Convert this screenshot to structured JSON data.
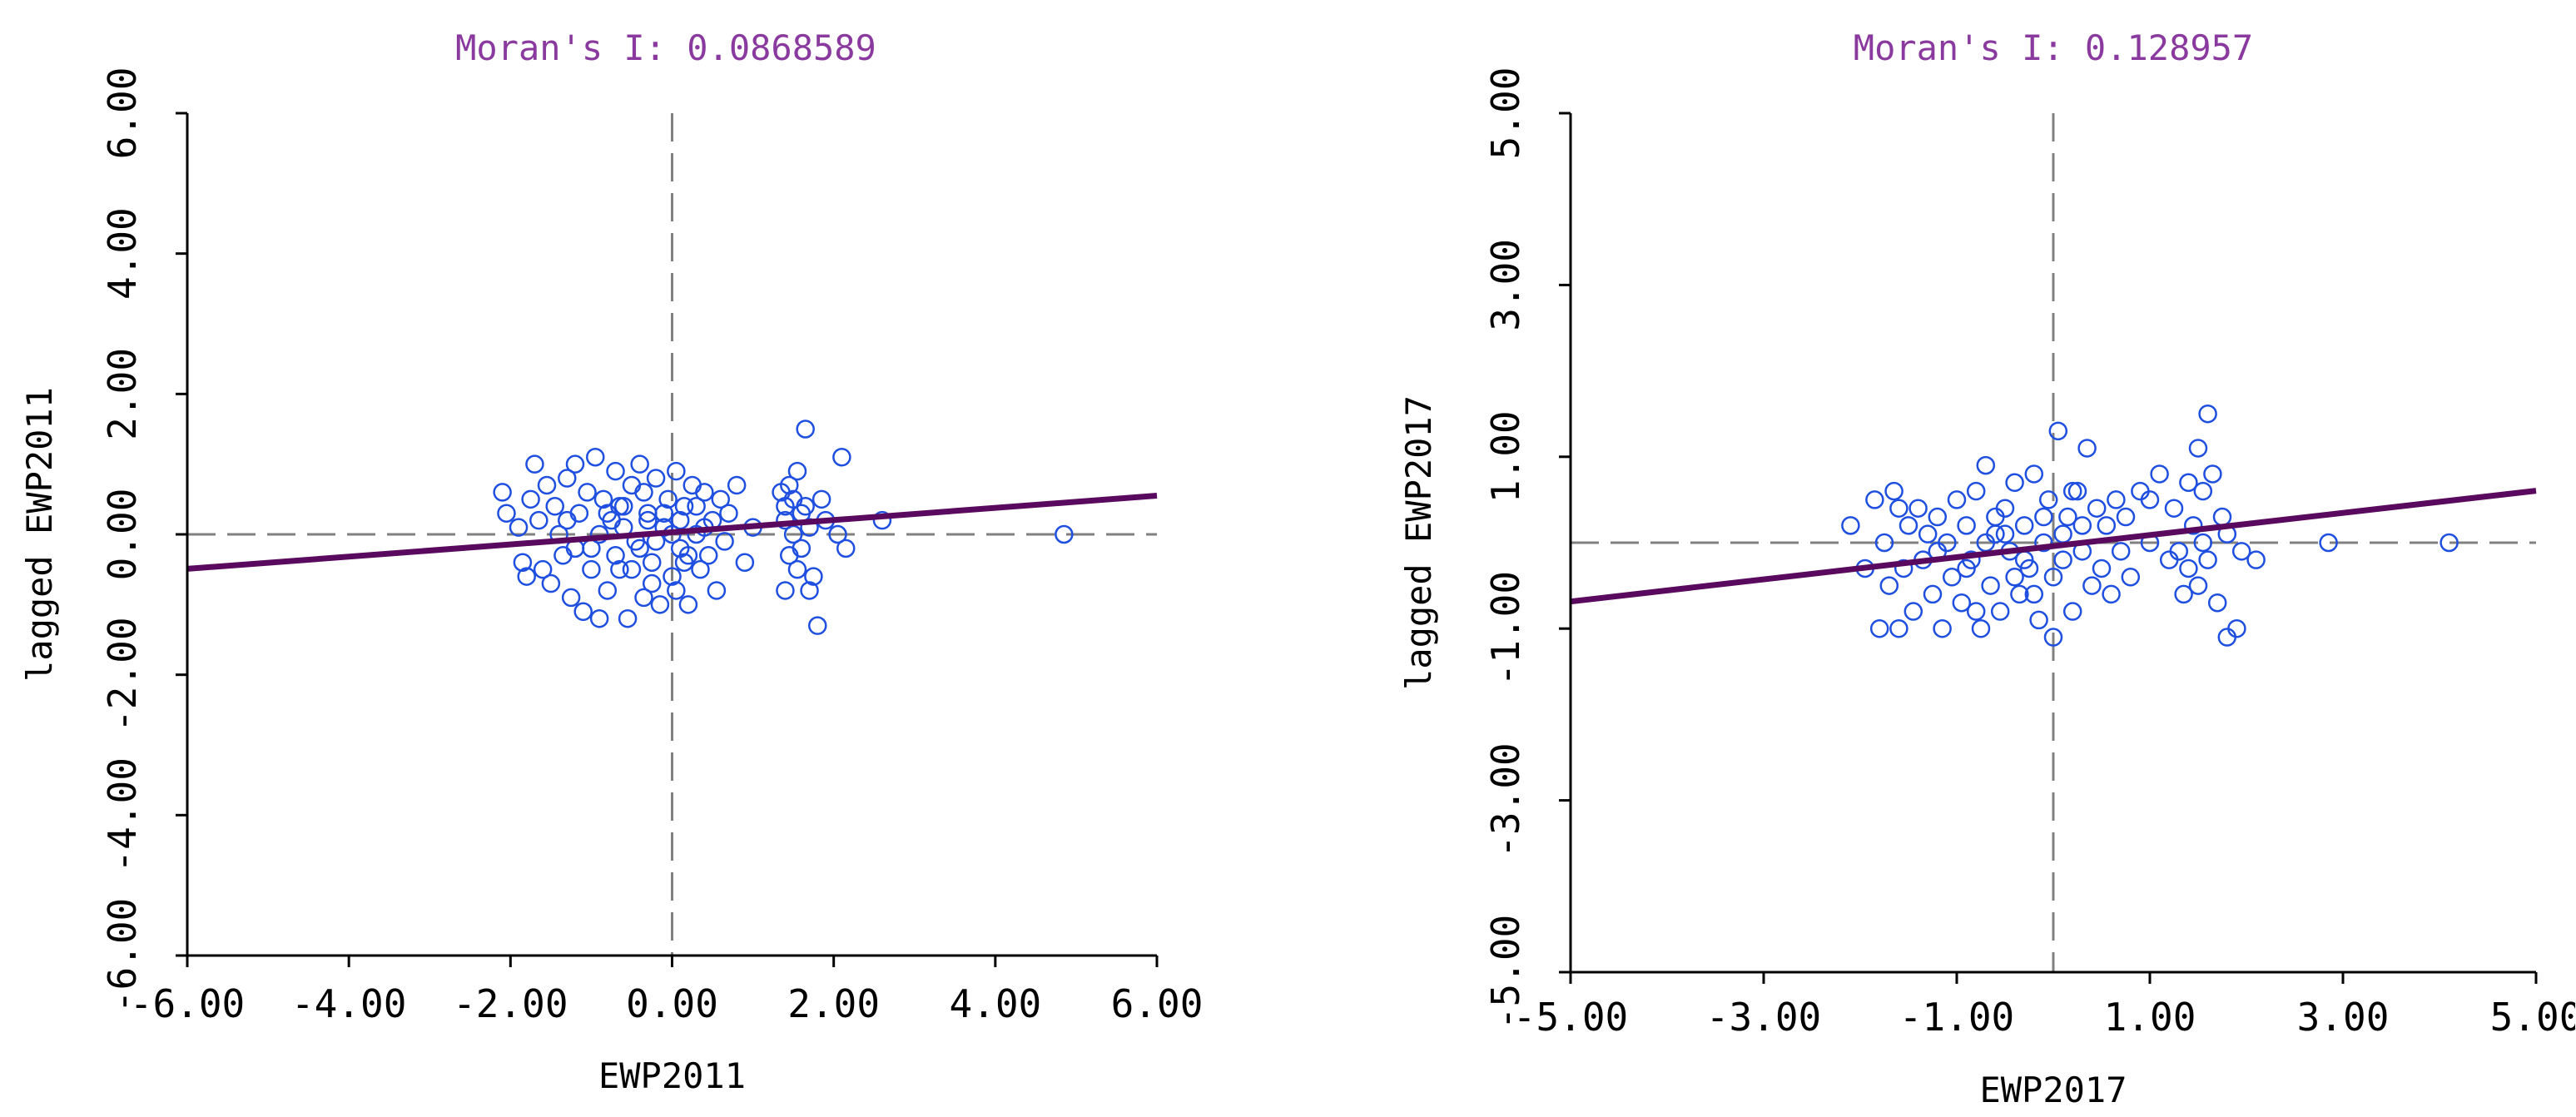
{
  "colors": {
    "point": "#1f4fe0",
    "regression_line": "#5a0a5e",
    "title": "#8a3a9e",
    "axis": "#000000",
    "reference_line": "#808080"
  },
  "chart_data": [
    {
      "type": "scatter",
      "title": "Moran's I: 0.0868589",
      "xlabel": "EWP2011",
      "ylabel": "lagged EWP2011",
      "xlim": [
        -6,
        6
      ],
      "ylim": [
        -6,
        6
      ],
      "xticks": [
        -6,
        -4,
        -2,
        0,
        2,
        4,
        6
      ],
      "yticks": [
        -6,
        -4,
        -2,
        0,
        2,
        4,
        6
      ],
      "xtick_labels": [
        "-6.00",
        "-4.00",
        "-2.00",
        "0.00",
        "2.00",
        "4.00",
        "6.00"
      ],
      "ytick_labels": [
        "-6.00",
        "-4.00",
        "-2.00",
        "0.00",
        "2.00",
        "4.00",
        "6.00"
      ],
      "reference_lines": {
        "x": 0,
        "y": 0
      },
      "regression": {
        "slope": 0.0868589,
        "intercept": 0.03
      },
      "points": [
        [
          -2.1,
          0.6
        ],
        [
          -2.05,
          0.3
        ],
        [
          -1.9,
          0.1
        ],
        [
          -1.85,
          -0.4
        ],
        [
          -1.8,
          -0.6
        ],
        [
          -1.75,
          0.5
        ],
        [
          -1.7,
          1.0
        ],
        [
          -1.65,
          0.2
        ],
        [
          -1.6,
          -0.5
        ],
        [
          -1.55,
          0.7
        ],
        [
          -1.5,
          -0.7
        ],
        [
          -1.45,
          0.4
        ],
        [
          -1.4,
          0.0
        ],
        [
          -1.35,
          -0.3
        ],
        [
          -1.3,
          0.8
        ],
        [
          -1.25,
          -0.9
        ],
        [
          -1.2,
          1.0
        ],
        [
          -1.15,
          0.3
        ],
        [
          -1.1,
          -1.1
        ],
        [
          -1.05,
          0.6
        ],
        [
          -1.0,
          -0.2
        ],
        [
          -0.95,
          1.1
        ],
        [
          -0.9,
          -1.2
        ],
        [
          -0.85,
          0.5
        ],
        [
          -0.8,
          -0.8
        ],
        [
          -0.75,
          0.2
        ],
        [
          -0.7,
          0.9
        ],
        [
          -0.65,
          -0.5
        ],
        [
          -0.6,
          0.4
        ],
        [
          -0.55,
          -1.2
        ],
        [
          -0.5,
          0.7
        ],
        [
          -0.45,
          -0.1
        ],
        [
          -0.4,
          1.0
        ],
        [
          -0.35,
          -0.9
        ],
        [
          -0.3,
          0.3
        ],
        [
          -0.25,
          -0.4
        ],
        [
          -0.2,
          0.8
        ],
        [
          -0.15,
          -1.0
        ],
        [
          -0.1,
          0.1
        ],
        [
          -0.05,
          0.5
        ],
        [
          0.0,
          -0.6
        ],
        [
          0.05,
          0.9
        ],
        [
          0.1,
          -0.2
        ],
        [
          0.15,
          0.4
        ],
        [
          0.2,
          -1.0
        ],
        [
          0.25,
          0.7
        ],
        [
          0.3,
          0.0
        ],
        [
          0.35,
          -0.5
        ],
        [
          0.4,
          0.6
        ],
        [
          0.45,
          -0.3
        ],
        [
          0.5,
          0.2
        ],
        [
          0.55,
          -0.8
        ],
        [
          0.6,
          0.5
        ],
        [
          0.65,
          -0.1
        ],
        [
          0.7,
          0.3
        ],
        [
          0.8,
          0.7
        ],
        [
          0.9,
          -0.4
        ],
        [
          1.0,
          0.1
        ],
        [
          -1.2,
          -0.2
        ],
        [
          -0.9,
          0.0
        ],
        [
          -0.7,
          -0.3
        ],
        [
          -0.6,
          0.1
        ],
        [
          -0.4,
          -0.2
        ],
        [
          -0.3,
          0.2
        ],
        [
          -0.2,
          -0.1
        ],
        [
          -0.1,
          0.3
        ],
        [
          0.0,
          0.0
        ],
        [
          0.1,
          0.2
        ],
        [
          0.2,
          -0.3
        ],
        [
          0.3,
          0.4
        ],
        [
          0.4,
          0.1
        ],
        [
          -0.8,
          0.3
        ],
        [
          -0.5,
          -0.5
        ],
        [
          0.15,
          -0.4
        ],
        [
          -1.3,
          0.2
        ],
        [
          -1.0,
          -0.5
        ],
        [
          -0.35,
          0.6
        ],
        [
          0.05,
          -0.8
        ],
        [
          -0.65,
          0.4
        ],
        [
          -0.25,
          -0.7
        ],
        [
          1.35,
          0.6
        ],
        [
          1.4,
          0.2
        ],
        [
          1.4,
          -0.8
        ],
        [
          1.45,
          0.7
        ],
        [
          1.45,
          -0.3
        ],
        [
          1.5,
          0.5
        ],
        [
          1.5,
          0.0
        ],
        [
          1.55,
          0.9
        ],
        [
          1.55,
          -0.5
        ],
        [
          1.6,
          0.3
        ],
        [
          1.6,
          -0.2
        ],
        [
          1.65,
          1.5
        ],
        [
          1.65,
          0.4
        ],
        [
          1.7,
          -0.8
        ],
        [
          1.7,
          0.1
        ],
        [
          1.75,
          -0.6
        ],
        [
          1.8,
          -1.3
        ],
        [
          1.85,
          0.5
        ],
        [
          1.9,
          0.2
        ],
        [
          1.4,
          0.4
        ],
        [
          2.05,
          0.0
        ],
        [
          2.1,
          1.1
        ],
        [
          2.15,
          -0.2
        ],
        [
          2.6,
          0.2
        ],
        [
          4.85,
          0.0
        ]
      ]
    },
    {
      "type": "scatter",
      "title": "Moran's I: 0.128957",
      "xlabel": "EWP2017",
      "ylabel": "lagged EWP2017",
      "xlim": [
        -5,
        5
      ],
      "ylim": [
        -5,
        5
      ],
      "xticks": [
        -5,
        -3,
        -1,
        1,
        3,
        5
      ],
      "yticks": [
        -5,
        -3,
        -1,
        1,
        3,
        5
      ],
      "xtick_labels": [
        "-5.00",
        "-3.00",
        "-1.00",
        "1.00",
        "3.00",
        "5.00"
      ],
      "ytick_labels": [
        "-5.00",
        "-3.00",
        "-1.00",
        "1.00",
        "3.00",
        "5.00"
      ],
      "reference_lines": {
        "x": 0,
        "y": 0
      },
      "regression": {
        "slope": 0.128957,
        "intercept": -0.04
      },
      "points": [
        [
          -2.1,
          0.2
        ],
        [
          -1.95,
          -0.3
        ],
        [
          -1.85,
          0.5
        ],
        [
          -1.8,
          -1.0
        ],
        [
          -1.75,
          0.0
        ],
        [
          -1.7,
          -0.5
        ],
        [
          -1.65,
          0.6
        ],
        [
          -1.6,
          -1.0
        ],
        [
          -1.55,
          -0.3
        ],
        [
          -1.5,
          0.2
        ],
        [
          -1.45,
          -0.8
        ],
        [
          -1.4,
          0.4
        ],
        [
          -1.35,
          -0.2
        ],
        [
          -1.3,
          0.1
        ],
        [
          -1.25,
          -0.6
        ],
        [
          -1.2,
          0.3
        ],
        [
          -1.15,
          -1.0
        ],
        [
          -1.1,
          0.0
        ],
        [
          -1.05,
          -0.4
        ],
        [
          -1.0,
          0.5
        ],
        [
          -0.95,
          -0.7
        ],
        [
          -0.9,
          0.2
        ],
        [
          -0.85,
          -0.2
        ],
        [
          -0.8,
          0.6
        ],
        [
          -0.75,
          -1.0
        ],
        [
          -0.7,
          0.9
        ],
        [
          -0.65,
          -0.5
        ],
        [
          -0.6,
          0.1
        ],
        [
          -0.55,
          -0.8
        ],
        [
          -0.5,
          0.4
        ],
        [
          -0.45,
          -0.1
        ],
        [
          -0.4,
          0.7
        ],
        [
          -0.35,
          -0.6
        ],
        [
          -0.3,
          0.2
        ],
        [
          -0.25,
          -0.3
        ],
        [
          -0.2,
          0.8
        ],
        [
          -0.15,
          -0.9
        ],
        [
          -0.1,
          0.0
        ],
        [
          -0.05,
          0.5
        ],
        [
          0.0,
          -0.4
        ],
        [
          0.05,
          1.3
        ],
        [
          0.1,
          -0.2
        ],
        [
          0.15,
          0.3
        ],
        [
          0.2,
          -0.8
        ],
        [
          0.25,
          0.6
        ],
        [
          0.3,
          -0.1
        ],
        [
          0.35,
          1.1
        ],
        [
          0.4,
          -0.5
        ],
        [
          0.45,
          0.4
        ],
        [
          0.5,
          -0.3
        ],
        [
          0.55,
          0.2
        ],
        [
          0.6,
          -0.6
        ],
        [
          0.65,
          0.5
        ],
        [
          0.7,
          -0.1
        ],
        [
          0.75,
          0.3
        ],
        [
          0.8,
          -0.4
        ],
        [
          0.9,
          0.6
        ],
        [
          1.0,
          0.0
        ],
        [
          1.1,
          0.8
        ],
        [
          1.2,
          -0.2
        ],
        [
          -1.2,
          -0.1
        ],
        [
          -0.9,
          -0.3
        ],
        [
          -0.7,
          0.0
        ],
        [
          -0.5,
          0.1
        ],
        [
          -0.3,
          -0.2
        ],
        [
          -0.1,
          0.3
        ],
        [
          0.1,
          0.1
        ],
        [
          0.3,
          0.2
        ],
        [
          -0.6,
          0.3
        ],
        [
          -0.4,
          -0.4
        ],
        [
          1.25,
          0.4
        ],
        [
          1.3,
          -0.1
        ],
        [
          1.35,
          -0.6
        ],
        [
          1.4,
          0.7
        ],
        [
          1.4,
          -0.3
        ],
        [
          1.45,
          0.2
        ],
        [
          1.5,
          1.1
        ],
        [
          1.5,
          -0.5
        ],
        [
          1.55,
          0.6
        ],
        [
          1.55,
          0.0
        ],
        [
          1.6,
          1.5
        ],
        [
          1.6,
          -0.2
        ],
        [
          1.65,
          0.8
        ],
        [
          1.7,
          -0.7
        ],
        [
          1.75,
          0.3
        ],
        [
          1.8,
          0.1
        ],
        [
          1.8,
          -1.1
        ],
        [
          1.9,
          -1.0
        ],
        [
          1.95,
          -0.1
        ],
        [
          2.1,
          -0.2
        ],
        [
          2.85,
          0.0
        ],
        [
          4.1,
          0.0
        ],
        [
          -0.8,
          -0.8
        ],
        [
          0.0,
          -1.1
        ],
        [
          0.2,
          0.6
        ],
        [
          -1.6,
          0.4
        ],
        [
          1.0,
          0.5
        ],
        [
          -0.2,
          -0.6
        ]
      ]
    }
  ]
}
